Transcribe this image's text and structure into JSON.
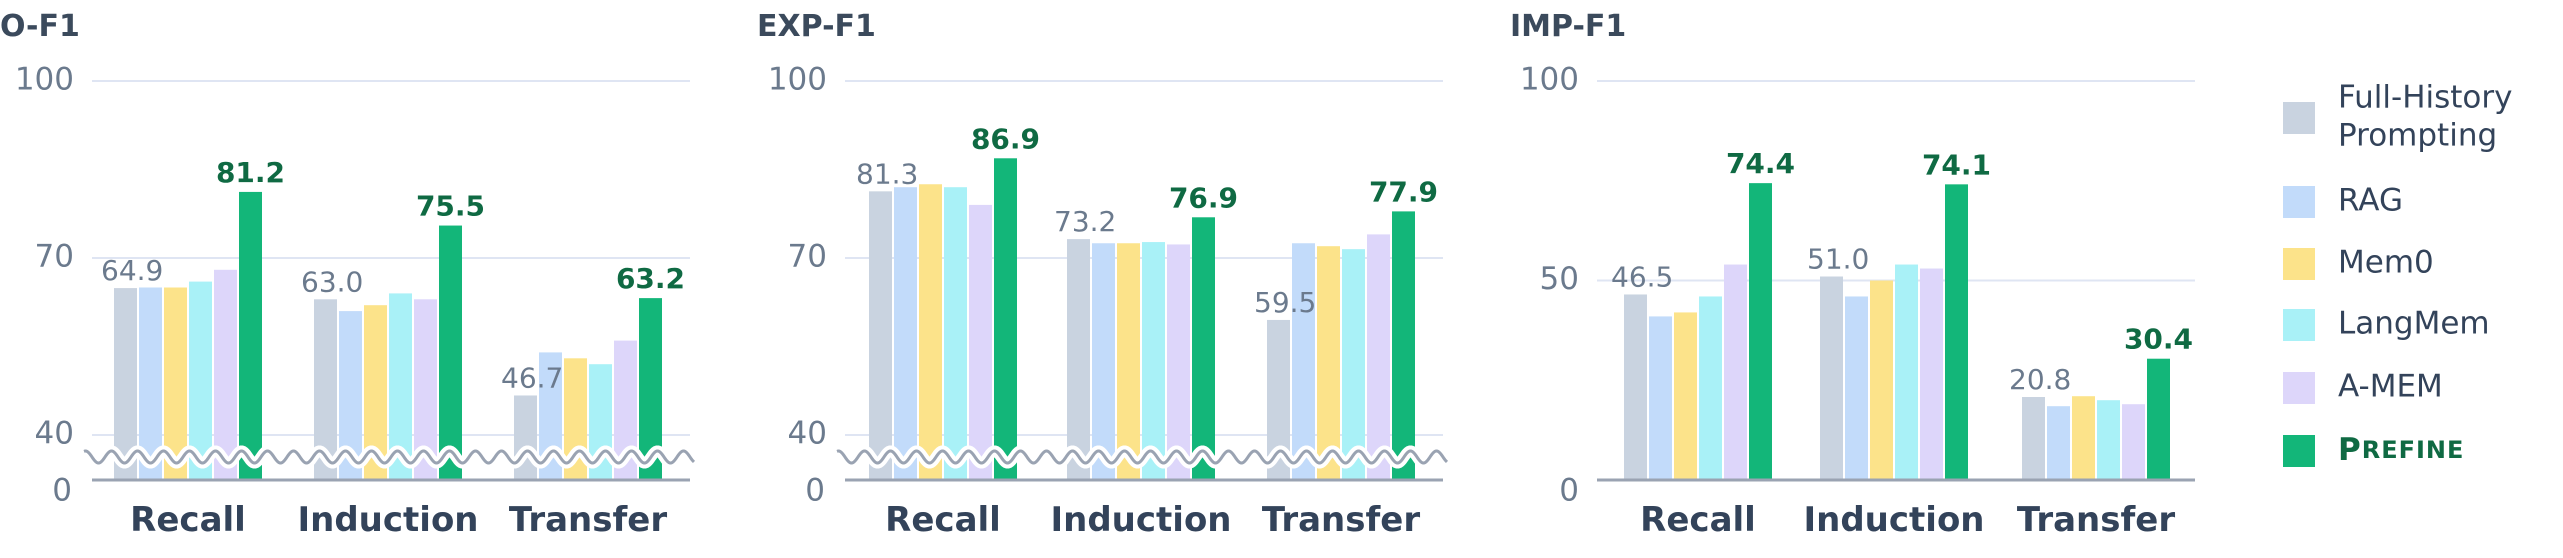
{
  "legend": [
    {
      "lines": [
        "Full-History",
        "Prompting"
      ],
      "color": "#c9d3e0"
    },
    {
      "lines": [
        "RAG"
      ],
      "color": "#c2dbfa"
    },
    {
      "lines": [
        "Mem0"
      ],
      "color": "#fce38a"
    },
    {
      "lines": [
        "LangMem"
      ],
      "color": "#a9f1f7"
    },
    {
      "lines": [
        "A-MEM"
      ],
      "color": "#ddd6fa"
    },
    {
      "lines": [
        "PREFINE"
      ],
      "color": "#13b679"
    }
  ],
  "chart_data": [
    {
      "type": "bar",
      "title": "O-F1",
      "categories": [
        "Recall",
        "Induction",
        "Transfer"
      ],
      "y_ticks": [
        0,
        40,
        70,
        100
      ],
      "axis_break": true,
      "ylim": [
        0,
        100
      ],
      "series": [
        {
          "name": "Full-History Prompting",
          "values": [
            64.9,
            63.0,
            46.7
          ]
        },
        {
          "name": "RAG",
          "values": [
            65,
            61,
            54
          ]
        },
        {
          "name": "Mem0",
          "values": [
            65,
            62,
            53
          ]
        },
        {
          "name": "LangMem",
          "values": [
            66,
            64,
            52
          ]
        },
        {
          "name": "A-MEM",
          "values": [
            68,
            63,
            56
          ]
        },
        {
          "name": "PREFINE",
          "values": [
            81.2,
            75.5,
            63.2
          ]
        }
      ],
      "labels_first": [
        "64.9",
        "63.0",
        "46.7"
      ],
      "labels_best": [
        "81.2",
        "75.5",
        "63.2"
      ]
    },
    {
      "type": "bar",
      "title": "EXP-F1",
      "categories": [
        "Recall",
        "Induction",
        "Transfer"
      ],
      "y_ticks": [
        0,
        40,
        70,
        100
      ],
      "axis_break": true,
      "ylim": [
        0,
        100
      ],
      "series": [
        {
          "name": "Full-History Prompting",
          "values": [
            81.3,
            73.2,
            59.5
          ]
        },
        {
          "name": "RAG",
          "values": [
            82,
            72.5,
            72.5
          ]
        },
        {
          "name": "Mem0",
          "values": [
            82.5,
            72.5,
            72
          ]
        },
        {
          "name": "LangMem",
          "values": [
            82,
            72.7,
            71.5
          ]
        },
        {
          "name": "A-MEM",
          "values": [
            79,
            72.3,
            74
          ]
        },
        {
          "name": "PREFINE",
          "values": [
            86.9,
            76.9,
            77.9
          ]
        }
      ],
      "labels_first": [
        "81.3",
        "73.2",
        "59.5"
      ],
      "labels_best": [
        "86.9",
        "76.9",
        "77.9"
      ]
    },
    {
      "type": "bar",
      "title": "IMP-F1",
      "categories": [
        "Recall",
        "Induction",
        "Transfer"
      ],
      "y_ticks": [
        0,
        50,
        100
      ],
      "axis_break": false,
      "ylim": [
        0,
        100
      ],
      "series": [
        {
          "name": "Full-History Prompting",
          "values": [
            46.5,
            51.0,
            20.8
          ]
        },
        {
          "name": "RAG",
          "values": [
            41,
            46,
            18.5
          ]
        },
        {
          "name": "Mem0",
          "values": [
            42,
            50,
            21
          ]
        },
        {
          "name": "LangMem",
          "values": [
            46,
            54,
            20
          ]
        },
        {
          "name": "A-MEM",
          "values": [
            54,
            53,
            19
          ]
        },
        {
          "name": "PREFINE",
          "values": [
            74.4,
            74.1,
            30.4
          ]
        }
      ],
      "labels_first": [
        "46.5",
        "51.0",
        "20.8"
      ],
      "labels_best": [
        "74.4",
        "74.1",
        "30.4"
      ]
    }
  ]
}
